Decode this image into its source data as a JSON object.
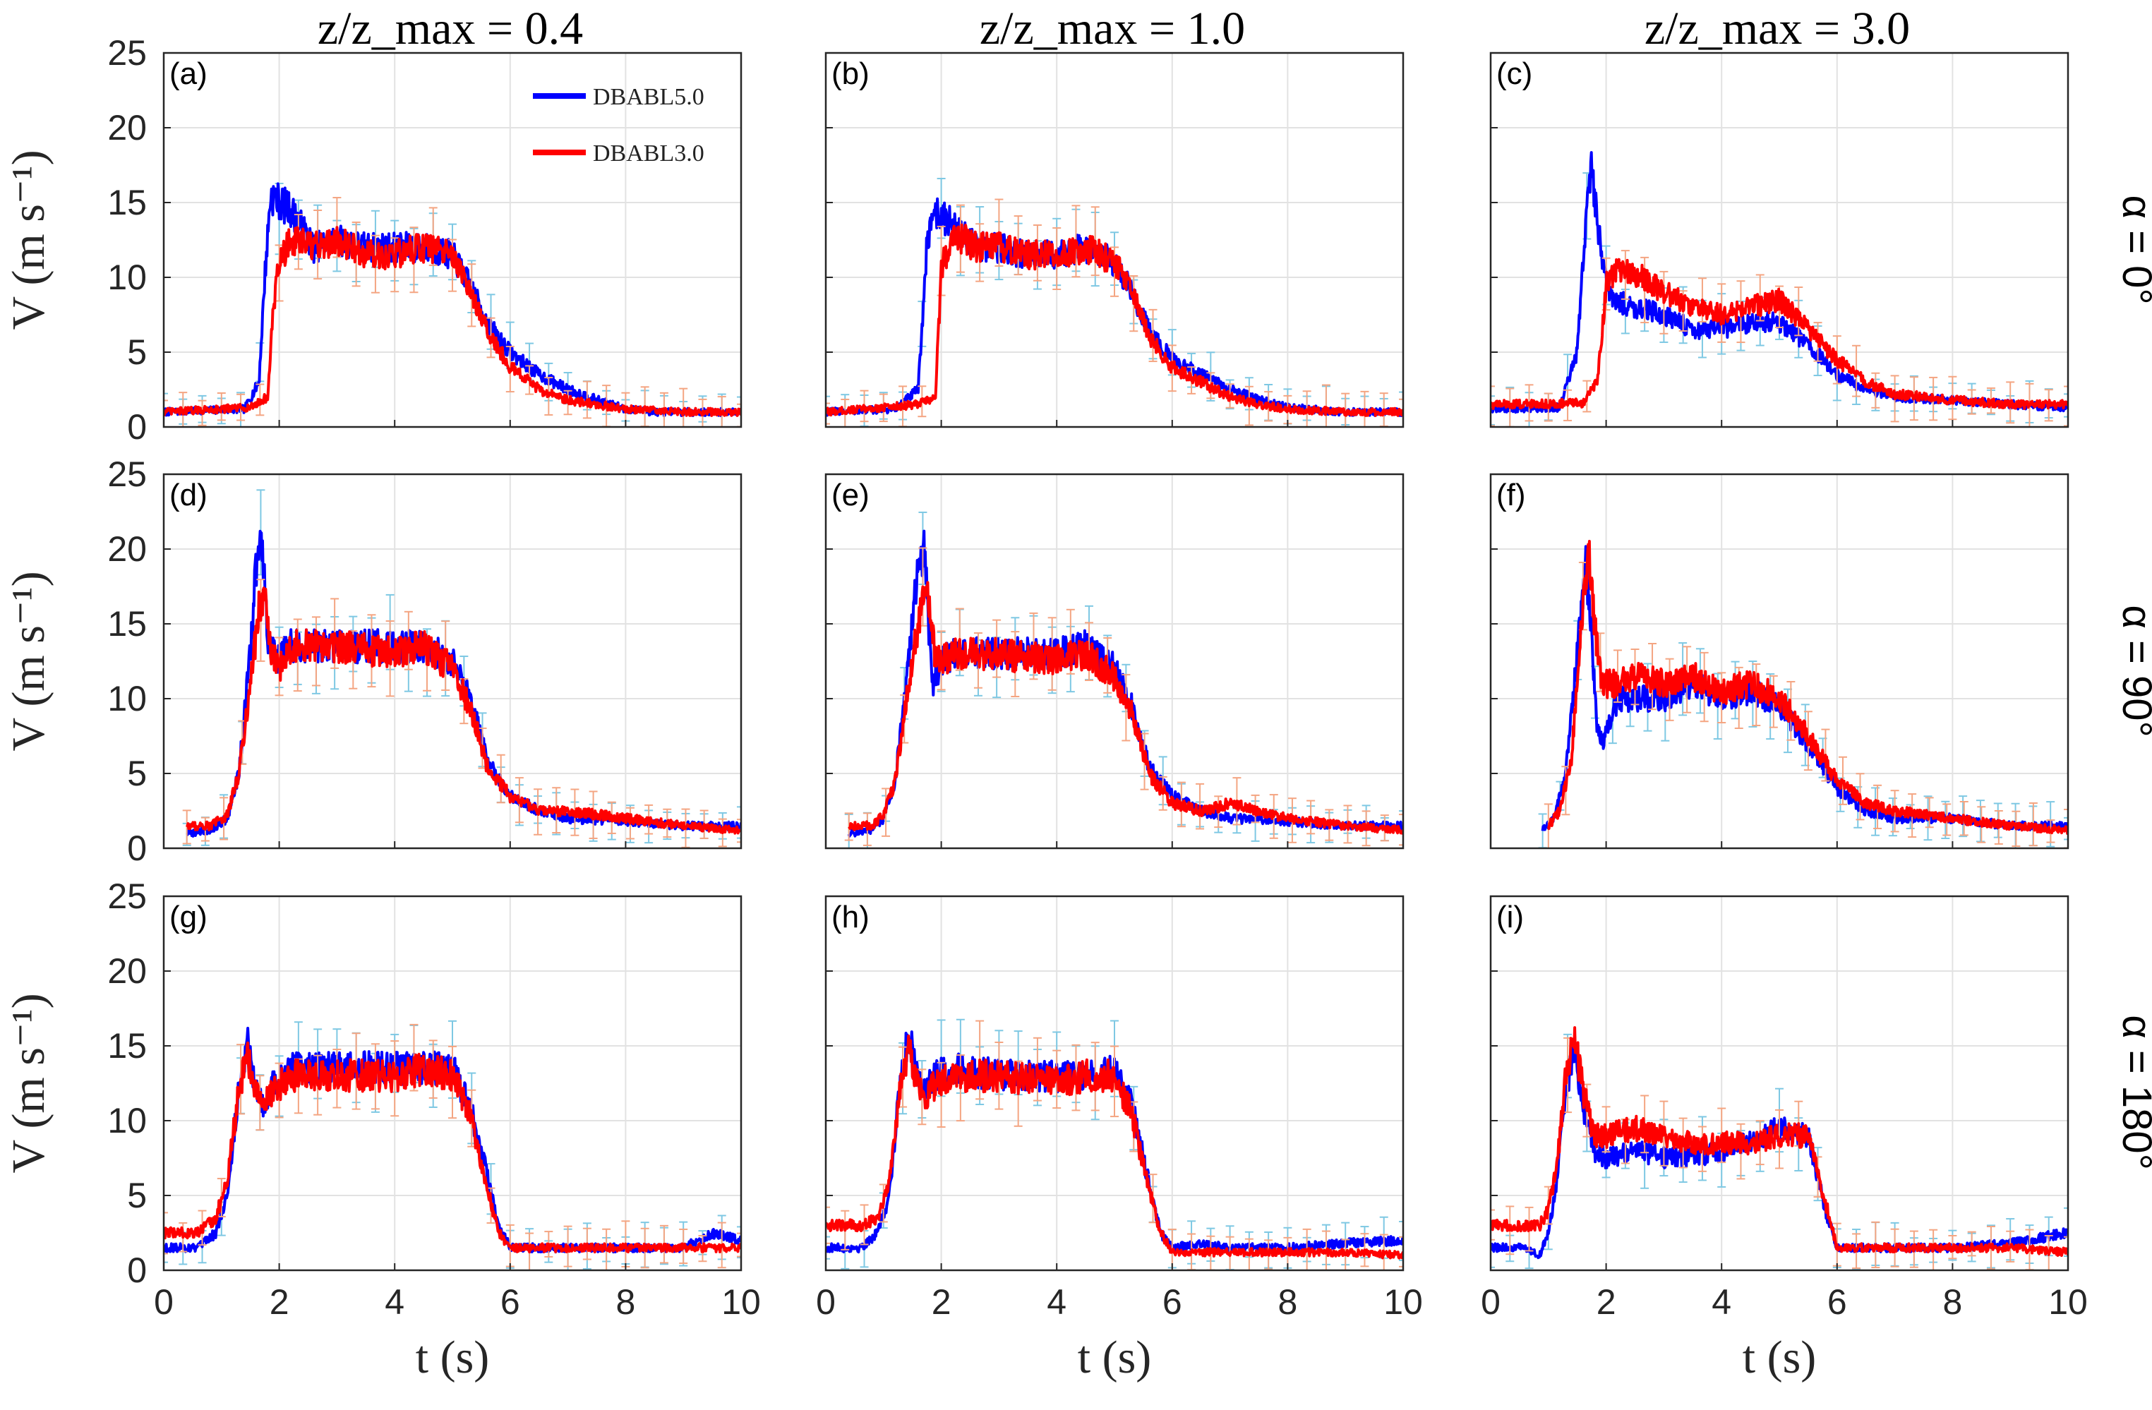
{
  "figure": {
    "column_titles": [
      "z/z_max = 0.4",
      "z/z_max = 1.0",
      "z/z_max = 3.0"
    ],
    "row_labels": [
      "α = 0°",
      "α = 90°",
      "α = 180°"
    ],
    "xlabel": "t (s)",
    "ylabel": "V (m s⁻¹)",
    "legend": {
      "entries": [
        {
          "name": "DBABL5.0",
          "color": "#0000FF"
        },
        {
          "name": "DBABL3.0",
          "color": "#FF0000"
        }
      ],
      "placement": "top-right inside panel (a)"
    },
    "errorbar_colors": {
      "DBABL5.0": "#7EC8E3",
      "DBABL3.0": "#F4A582"
    }
  },
  "chart_data": [
    {
      "type": "line",
      "panel": "(a)",
      "xlim": [
        0,
        10
      ],
      "ylim": [
        0,
        25
      ],
      "xticks": [
        0,
        2,
        4,
        6,
        8,
        10
      ],
      "yticks": [
        0,
        5,
        10,
        15,
        20,
        25
      ],
      "grid": true,
      "series": [
        {
          "name": "DBABL5.0",
          "x": [
            0,
            1.4,
            1.65,
            1.75,
            1.85,
            2.2,
            2.6,
            3.0,
            3.5,
            4.0,
            4.5,
            5.0,
            5.3,
            5.6,
            6.0,
            6.5,
            7.0,
            7.5,
            8.0,
            8.5,
            9.0,
            10.0
          ],
          "y": [
            1.0,
            1.2,
            3.0,
            10.0,
            15.5,
            14.5,
            12.0,
            12.5,
            12.0,
            12.0,
            12.0,
            11.5,
            9.5,
            7.0,
            5.0,
            3.5,
            2.5,
            1.8,
            1.2,
            1.0,
            1.0,
            1.0
          ]
        },
        {
          "name": "DBABL3.0",
          "x": [
            0,
            1.5,
            1.8,
            1.9,
            2.0,
            2.2,
            2.6,
            3.0,
            3.5,
            4.0,
            4.5,
            5.0,
            5.3,
            5.6,
            6.0,
            6.5,
            7.0,
            7.5,
            8.0,
            9.0,
            10.0
          ],
          "y": [
            1.0,
            1.3,
            2.0,
            8.0,
            11.0,
            12.5,
            12.0,
            12.5,
            11.5,
            11.5,
            12.0,
            11.5,
            9.0,
            6.5,
            4.0,
            2.5,
            1.8,
            1.5,
            1.2,
            1.0,
            1.0
          ]
        }
      ]
    },
    {
      "type": "line",
      "panel": "(b)",
      "xlim": [
        0,
        10
      ],
      "ylim": [
        0,
        25
      ],
      "xticks": [
        0,
        2,
        4,
        6,
        8,
        10
      ],
      "yticks": [
        0,
        5,
        10,
        15,
        20,
        25
      ],
      "grid": true,
      "series": [
        {
          "name": "DBABL5.0",
          "x": [
            0,
            1.2,
            1.6,
            1.75,
            1.85,
            2.2,
            2.6,
            3.0,
            3.5,
            4.0,
            4.5,
            5.0,
            5.3,
            5.6,
            6.0,
            6.5,
            7.0,
            7.5,
            8.0,
            9.0,
            10.0
          ],
          "y": [
            1.0,
            1.2,
            2.5,
            12.0,
            14.5,
            13.5,
            12.0,
            12.0,
            11.5,
            11.5,
            12.0,
            11.0,
            9.0,
            6.5,
            4.5,
            3.5,
            2.5,
            1.8,
            1.3,
            1.0,
            1.0
          ]
        },
        {
          "name": "DBABL3.0",
          "x": [
            0,
            1.6,
            1.9,
            2.0,
            2.2,
            2.6,
            3.0,
            3.5,
            4.0,
            4.5,
            5.0,
            5.3,
            5.6,
            6.0,
            6.5,
            7.0,
            7.5,
            8.0,
            9.0,
            10.0
          ],
          "y": [
            1.0,
            1.5,
            2.0,
            10.5,
            13.0,
            12.0,
            12.0,
            11.5,
            11.5,
            12.0,
            11.0,
            9.0,
            6.0,
            4.0,
            3.0,
            2.0,
            1.5,
            1.2,
            1.0,
            1.0
          ]
        }
      ]
    },
    {
      "type": "line",
      "panel": "(c)",
      "xlim": [
        0,
        10
      ],
      "ylim": [
        0,
        25
      ],
      "xticks": [
        0,
        2,
        4,
        6,
        8,
        10
      ],
      "yticks": [
        0,
        5,
        10,
        15,
        20,
        25
      ],
      "grid": true,
      "series": [
        {
          "name": "DBABL5.0",
          "x": [
            0,
            1.2,
            1.5,
            1.65,
            1.75,
            1.9,
            2.1,
            2.5,
            3.0,
            3.5,
            4.0,
            4.5,
            5.0,
            5.5,
            6.0,
            6.5,
            7.0,
            8.0,
            9.0,
            10.0
          ],
          "y": [
            1.2,
            1.3,
            5.0,
            14.0,
            17.5,
            12.0,
            8.5,
            8.0,
            7.5,
            6.5,
            6.5,
            7.0,
            7.0,
            5.5,
            3.5,
            2.5,
            2.0,
            1.8,
            1.5,
            1.3
          ]
        },
        {
          "name": "DBABL3.0",
          "x": [
            0,
            1.6,
            1.85,
            2.0,
            2.2,
            2.6,
            3.0,
            3.5,
            4.0,
            4.5,
            5.0,
            5.5,
            6.0,
            6.5,
            7.0,
            8.0,
            9.0,
            10.0
          ],
          "y": [
            1.5,
            1.6,
            3.0,
            9.5,
            10.5,
            10.0,
            9.0,
            8.0,
            7.5,
            8.0,
            8.5,
            6.5,
            4.5,
            3.0,
            2.2,
            1.8,
            1.5,
            1.5
          ]
        }
      ]
    },
    {
      "type": "line",
      "panel": "(d)",
      "xlim": [
        0,
        10
      ],
      "ylim": [
        0,
        25
      ],
      "xticks": [
        0,
        2,
        4,
        6,
        8,
        10
      ],
      "yticks": [
        0,
        5,
        10,
        15,
        20,
        25
      ],
      "grid": true,
      "series": [
        {
          "name": "DBABL5.0",
          "x": [
            0.4,
            0.8,
            1.1,
            1.3,
            1.5,
            1.6,
            1.7,
            1.8,
            1.95,
            2.2,
            3.0,
            4.0,
            4.5,
            5.0,
            5.3,
            5.6,
            6.0,
            6.5,
            7.0,
            8.0,
            9.0,
            10.0
          ],
          "y": [
            1.0,
            1.2,
            2.0,
            5.0,
            13.0,
            19.0,
            20.5,
            14.0,
            12.5,
            13.5,
            13.5,
            13.5,
            13.5,
            12.5,
            10.0,
            6.0,
            3.5,
            2.5,
            2.0,
            1.8,
            1.5,
            1.5
          ]
        },
        {
          "name": "DBABL3.0",
          "x": [
            0.4,
            0.8,
            1.1,
            1.3,
            1.5,
            1.65,
            1.75,
            1.85,
            2.0,
            2.2,
            3.0,
            4.0,
            4.5,
            5.0,
            5.3,
            5.6,
            6.0,
            6.5,
            7.0,
            8.0,
            9.0,
            10.0
          ],
          "y": [
            1.5,
            1.5,
            2.2,
            5.0,
            11.0,
            16.0,
            17.0,
            13.0,
            12.0,
            13.5,
            13.5,
            13.0,
            13.5,
            12.0,
            9.5,
            5.5,
            3.5,
            2.5,
            2.5,
            2.0,
            1.5,
            1.2
          ]
        }
      ]
    },
    {
      "type": "line",
      "panel": "(e)",
      "xlim": [
        0,
        10
      ],
      "ylim": [
        0,
        25
      ],
      "xticks": [
        0,
        2,
        4,
        6,
        8,
        10
      ],
      "yticks": [
        0,
        5,
        10,
        15,
        20,
        25
      ],
      "grid": true,
      "series": [
        {
          "name": "DBABL5.0",
          "x": [
            0.4,
            0.8,
            1.0,
            1.2,
            1.4,
            1.55,
            1.7,
            1.85,
            2.0,
            2.2,
            3.0,
            4.0,
            4.5,
            5.0,
            5.3,
            5.6,
            6.0,
            6.5,
            7.0,
            8.0,
            9.0,
            10.0
          ],
          "y": [
            1.0,
            1.2,
            2.0,
            4.5,
            11.0,
            17.5,
            20.0,
            11.0,
            12.5,
            13.0,
            13.0,
            13.0,
            13.5,
            12.0,
            9.5,
            5.5,
            3.5,
            2.5,
            2.0,
            1.8,
            1.5,
            1.5
          ]
        },
        {
          "name": "DBABL3.0",
          "x": [
            0.4,
            0.8,
            1.0,
            1.2,
            1.4,
            1.6,
            1.75,
            1.9,
            2.0,
            2.2,
            3.0,
            4.0,
            4.5,
            5.0,
            5.3,
            5.6,
            6.0,
            6.5,
            7.0,
            8.0,
            9.0,
            10.0
          ],
          "y": [
            1.5,
            1.5,
            2.2,
            4.5,
            10.0,
            15.0,
            17.5,
            12.5,
            12.5,
            13.0,
            13.0,
            12.5,
            13.0,
            11.5,
            9.0,
            5.0,
            3.0,
            2.5,
            3.0,
            2.0,
            1.5,
            1.2
          ]
        }
      ]
    },
    {
      "type": "line",
      "panel": "(f)",
      "xlim": [
        0,
        10
      ],
      "ylim": [
        0,
        25
      ],
      "xticks": [
        0,
        2,
        4,
        6,
        8,
        10
      ],
      "yticks": [
        0,
        5,
        10,
        15,
        20,
        25
      ],
      "grid": true,
      "series": [
        {
          "name": "DBABL5.0",
          "x": [
            0.9,
            1.1,
            1.3,
            1.5,
            1.65,
            1.75,
            1.85,
            1.95,
            2.2,
            2.5,
            3.0,
            3.5,
            4.0,
            4.5,
            5.0,
            5.5,
            6.0,
            6.5,
            7.0,
            8.0,
            9.0,
            10.0
          ],
          "y": [
            1.2,
            2.0,
            5.0,
            13.0,
            19.0,
            14.0,
            8.0,
            7.0,
            10.0,
            10.0,
            10.0,
            11.0,
            10.0,
            10.5,
            9.5,
            7.0,
            4.0,
            2.5,
            2.0,
            2.0,
            1.5,
            1.5
          ]
        },
        {
          "name": "DBABL3.0",
          "x": [
            1.0,
            1.2,
            1.4,
            1.55,
            1.7,
            1.8,
            1.9,
            2.0,
            2.2,
            2.5,
            3.0,
            3.5,
            4.0,
            4.5,
            5.0,
            5.5,
            6.0,
            6.5,
            7.0,
            8.0,
            9.0,
            10.0
          ],
          "y": [
            1.5,
            2.5,
            6.0,
            14.0,
            19.5,
            15.0,
            11.5,
            11.0,
            11.0,
            11.5,
            11.0,
            11.5,
            10.5,
            11.0,
            10.0,
            7.5,
            4.5,
            3.0,
            2.5,
            2.0,
            1.5,
            1.2
          ]
        }
      ]
    },
    {
      "type": "line",
      "panel": "(g)",
      "xlim": [
        0,
        10
      ],
      "ylim": [
        0,
        25
      ],
      "xticks": [
        0,
        2,
        4,
        6,
        8,
        10
      ],
      "yticks": [
        0,
        5,
        10,
        15,
        20,
        25
      ],
      "grid": true,
      "series": [
        {
          "name": "DBABL5.0",
          "x": [
            0,
            0.6,
            0.9,
            1.1,
            1.3,
            1.45,
            1.55,
            1.7,
            1.9,
            2.2,
            3.0,
            4.0,
            4.5,
            5.0,
            5.3,
            5.5,
            5.8,
            6.0,
            6.5,
            7.0,
            8.0,
            9.0,
            9.5,
            10.0
          ],
          "y": [
            1.5,
            1.5,
            2.5,
            5.0,
            12.0,
            15.5,
            13.0,
            11.0,
            12.5,
            13.5,
            13.5,
            13.5,
            13.5,
            13.5,
            11.0,
            8.0,
            3.0,
            1.5,
            1.5,
            1.5,
            1.5,
            1.5,
            2.5,
            2.0
          ]
        },
        {
          "name": "DBABL3.0",
          "x": [
            0,
            0.6,
            0.9,
            1.1,
            1.3,
            1.45,
            1.55,
            1.7,
            1.9,
            2.2,
            3.0,
            4.0,
            4.5,
            5.0,
            5.3,
            5.5,
            5.8,
            6.0,
            6.5,
            7.0,
            8.0,
            9.0,
            10.0
          ],
          "y": [
            2.5,
            2.5,
            3.5,
            6.0,
            12.0,
            14.5,
            12.5,
            11.0,
            12.0,
            13.0,
            13.0,
            13.0,
            13.5,
            13.0,
            10.5,
            7.0,
            2.5,
            1.5,
            1.5,
            1.5,
            1.5,
            1.5,
            1.5
          ]
        }
      ]
    },
    {
      "type": "line",
      "panel": "(h)",
      "xlim": [
        0,
        10
      ],
      "ylim": [
        0,
        25
      ],
      "xticks": [
        0,
        2,
        4,
        6,
        8,
        10
      ],
      "yticks": [
        0,
        5,
        10,
        15,
        20,
        25
      ],
      "grid": true,
      "series": [
        {
          "name": "DBABL5.0",
          "x": [
            0,
            0.6,
            0.9,
            1.1,
            1.3,
            1.45,
            1.55,
            1.7,
            1.9,
            2.2,
            3.0,
            4.0,
            4.5,
            5.0,
            5.3,
            5.5,
            5.8,
            6.0,
            6.5,
            7.0,
            8.0,
            9.0,
            10.0
          ],
          "y": [
            1.5,
            1.5,
            2.5,
            5.0,
            13.0,
            16.0,
            14.0,
            12.0,
            13.0,
            13.5,
            13.0,
            13.0,
            13.0,
            13.5,
            11.0,
            7.5,
            2.5,
            1.5,
            1.8,
            1.5,
            1.5,
            1.8,
            2.0
          ]
        },
        {
          "name": "DBABL3.0",
          "x": [
            0,
            0.6,
            0.9,
            1.1,
            1.3,
            1.45,
            1.55,
            1.7,
            1.9,
            2.2,
            3.0,
            4.0,
            4.5,
            5.0,
            5.3,
            5.5,
            5.8,
            6.0,
            6.5,
            7.0,
            8.0,
            9.0,
            10.0
          ],
          "y": [
            3.0,
            3.0,
            3.5,
            6.0,
            12.5,
            15.0,
            13.0,
            11.5,
            12.5,
            13.0,
            13.0,
            12.5,
            13.0,
            13.0,
            10.5,
            7.0,
            2.5,
            1.2,
            1.2,
            1.2,
            1.2,
            1.2,
            1.0
          ]
        }
      ]
    },
    {
      "type": "line",
      "panel": "(i)",
      "xlim": [
        0,
        10
      ],
      "ylim": [
        0,
        25
      ],
      "xticks": [
        0,
        2,
        4,
        6,
        8,
        10
      ],
      "yticks": [
        0,
        5,
        10,
        15,
        20,
        25
      ],
      "grid": true,
      "series": [
        {
          "name": "DBABL5.0",
          "x": [
            0,
            0.6,
            0.85,
            1.0,
            1.15,
            1.3,
            1.45,
            1.6,
            1.8,
            2.0,
            2.5,
            3.0,
            3.5,
            4.0,
            4.5,
            5.0,
            5.5,
            5.8,
            6.0,
            6.5,
            7.0,
            8.0,
            9.0,
            10.0
          ],
          "y": [
            1.5,
            1.5,
            1.0,
            2.5,
            6.0,
            12.0,
            15.0,
            11.0,
            8.0,
            7.5,
            8.0,
            7.5,
            7.5,
            8.0,
            8.5,
            9.5,
            9.0,
            4.0,
            1.5,
            1.5,
            1.5,
            1.5,
            1.8,
            2.5
          ]
        },
        {
          "name": "DBABL3.0",
          "x": [
            0,
            0.6,
            0.85,
            1.0,
            1.15,
            1.3,
            1.45,
            1.6,
            1.8,
            2.0,
            2.5,
            3.0,
            3.5,
            4.0,
            4.5,
            5.0,
            5.5,
            5.8,
            6.0,
            6.5,
            7.0,
            8.0,
            9.0,
            10.0
          ],
          "y": [
            3.0,
            3.0,
            3.0,
            4.0,
            7.0,
            13.0,
            15.5,
            12.0,
            9.0,
            9.0,
            9.5,
            9.0,
            8.5,
            8.5,
            8.5,
            9.0,
            9.0,
            4.5,
            1.5,
            1.5,
            1.5,
            1.5,
            1.5,
            1.2
          ]
        }
      ]
    }
  ]
}
